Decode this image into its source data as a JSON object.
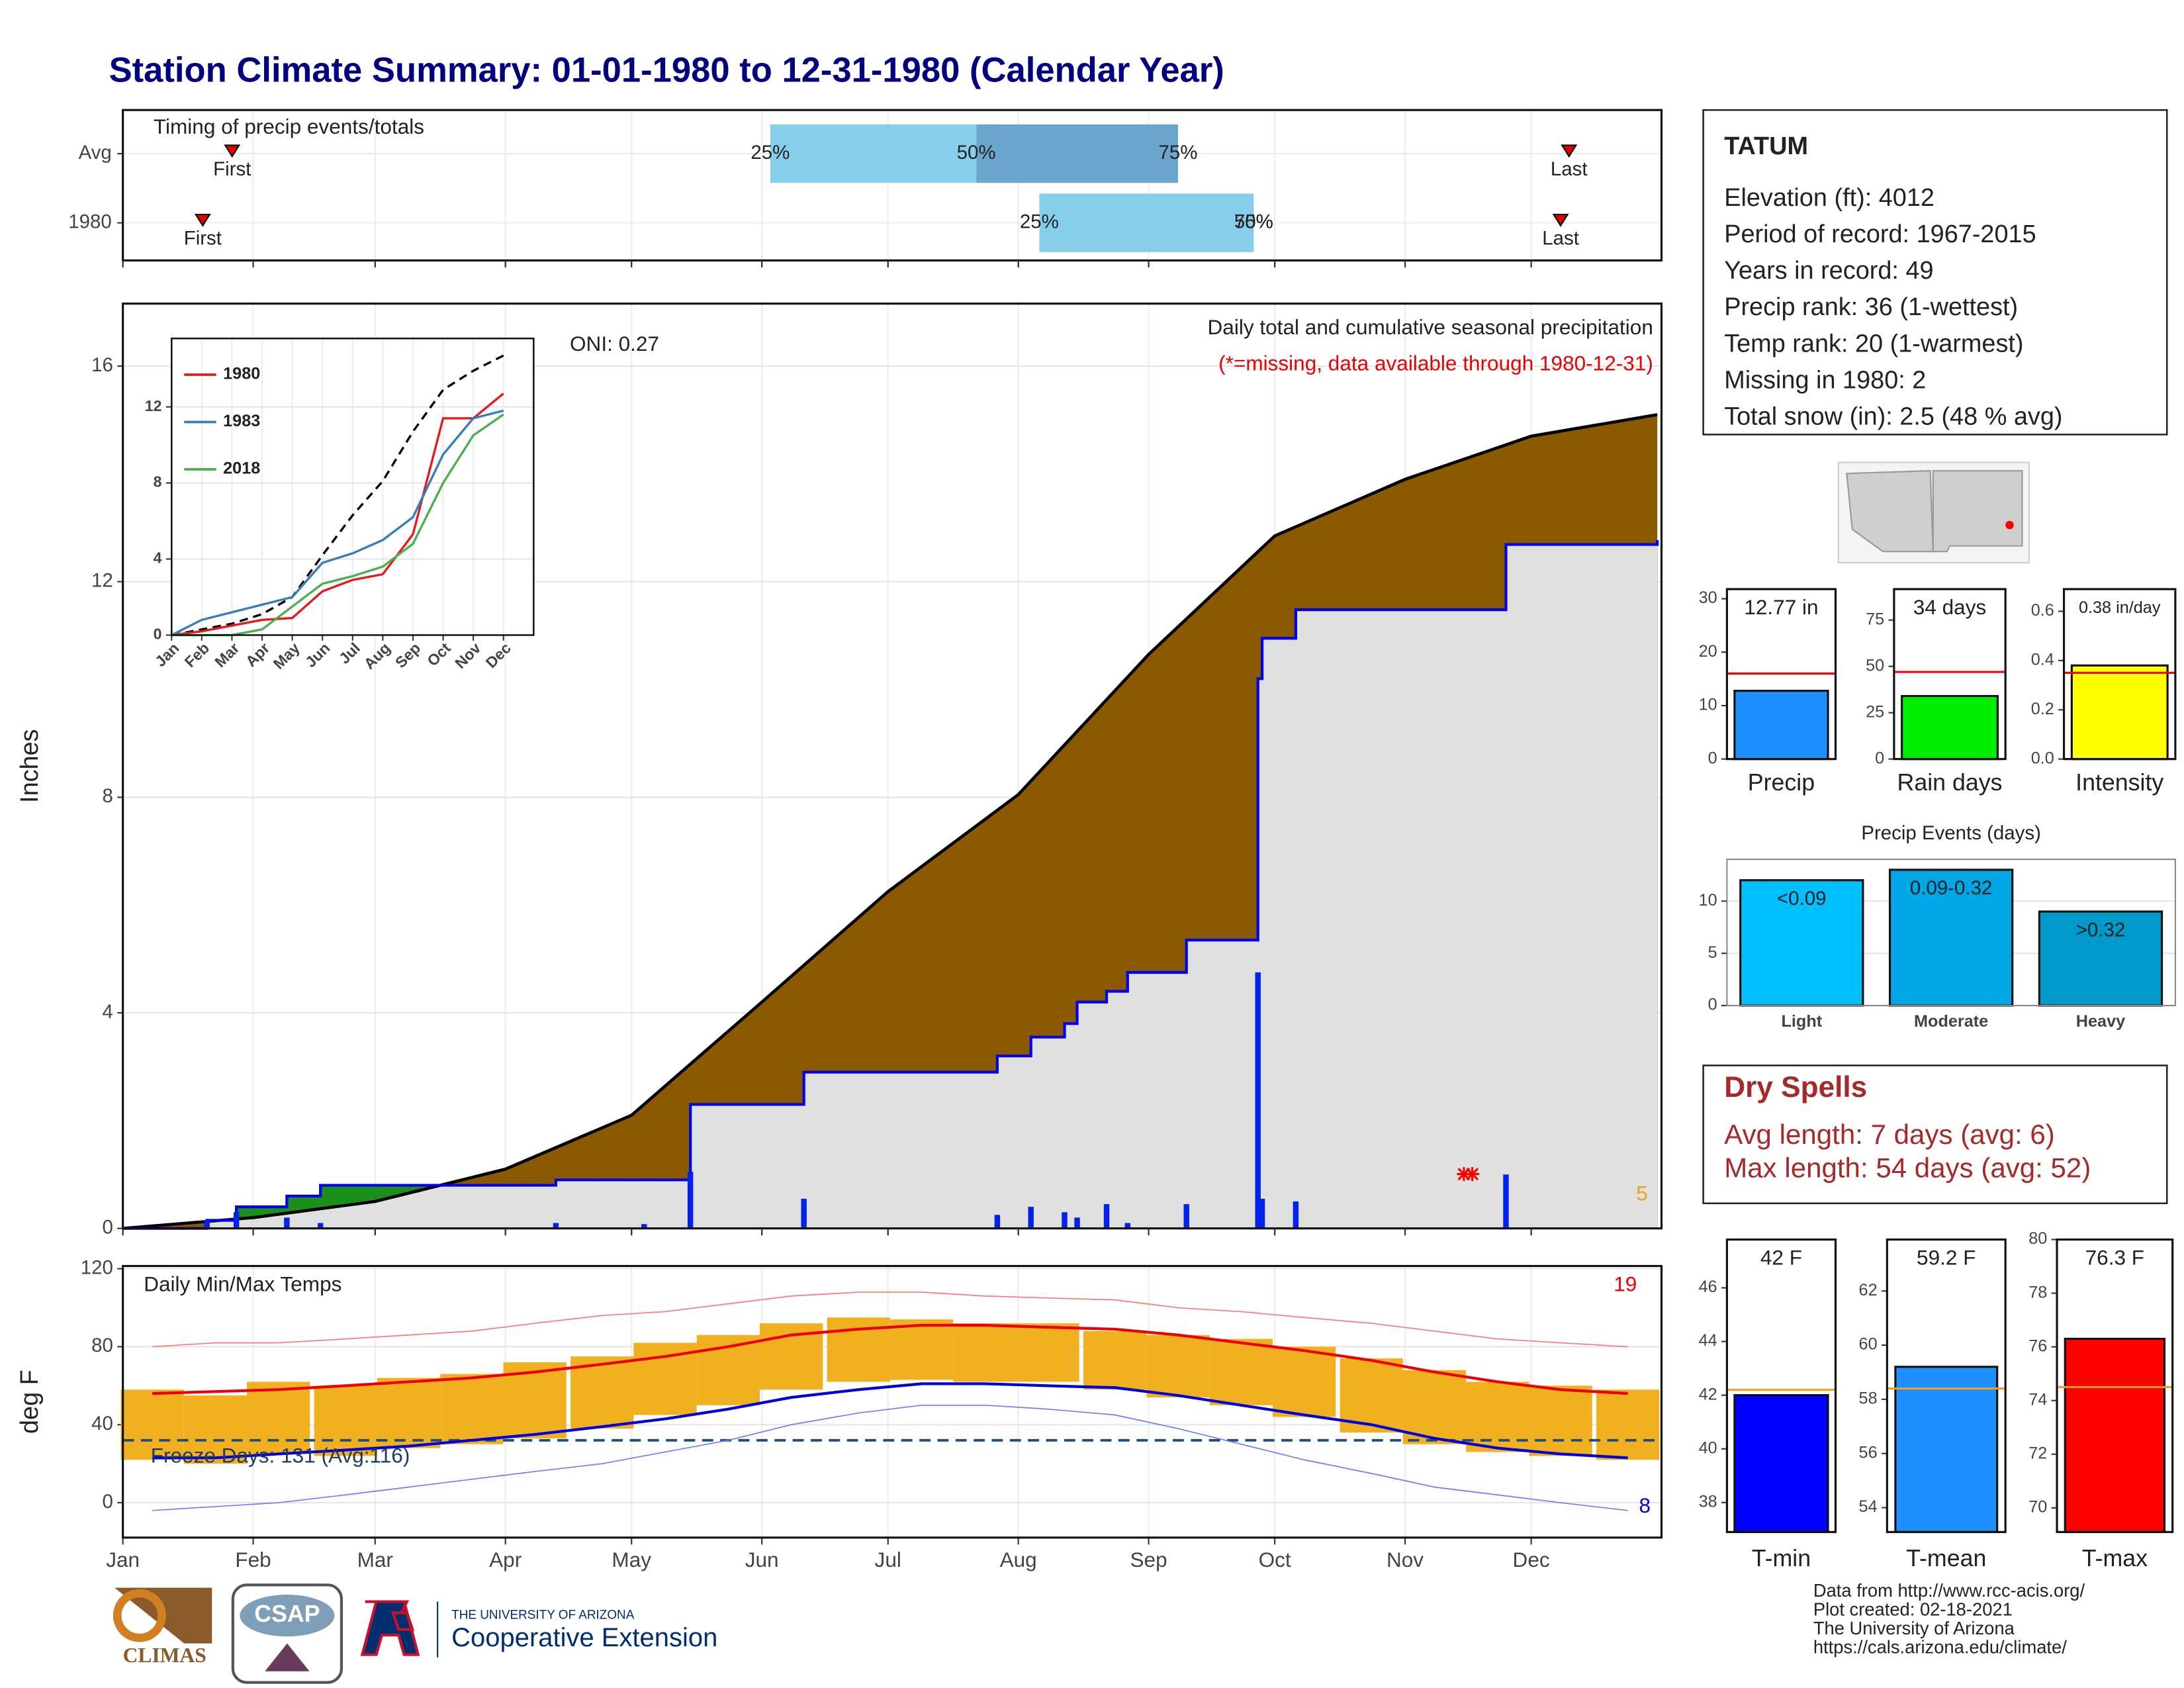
{
  "title": "Station Climate Summary: 01-01-1980 to 12-31-1980 (Calendar Year)",
  "station": {
    "name": "TATUM",
    "lines": [
      "Elevation (ft): 4012",
      "Period of record: 1967-2015",
      "Years in record: 49",
      "Precip rank: 36 (1-wettest)",
      "Temp rank: 20 (1-warmest)",
      "Missing in 1980: 2",
      "Total snow (in): 2.5 (48 % avg)"
    ]
  },
  "dry_spells": {
    "title": "Dry Spells",
    "lines": [
      "Avg length: 7 days (avg: 6)",
      "Max length: 54 days (avg: 52)"
    ]
  },
  "footer": [
    "Data from http://www.rcc-acis.org/",
    "Plot created: 02-18-2021",
    "The University of Arizona",
    "https://cals.arizona.edu/climate/"
  ],
  "logos": [
    "CLIMAS",
    "CSAP",
    "THE UNIVERSITY OF ARIZONA",
    "Cooperative Extension"
  ],
  "chart_data": [
    {
      "type": "timing",
      "title": "Timing of precip events/totals",
      "xlim": [
        1,
        367
      ],
      "categories": [
        "Avg",
        "1980"
      ],
      "first": [
        27,
        20
      ],
      "last": [
        345,
        343
      ],
      "first_label": "First",
      "last_label": "Last",
      "percentile_labels": [
        "25%",
        "50%",
        "75%"
      ],
      "percentiles": [
        [
          155,
          204,
          252
        ],
        [
          219,
          270,
          270
        ]
      ],
      "colors": [
        "#87ceeb",
        "#6ca6cd"
      ],
      "marker_color": "#e00000"
    },
    {
      "type": "area",
      "ylabel": "Inches",
      "title": "Daily total and cumulative seasonal precipitation",
      "subtitle": "(*=missing, data available through 1980-12-31)",
      "annotation": "ONI: 0.27",
      "count_label": "5",
      "xlim": [
        1,
        367
      ],
      "ylim": [
        0,
        17.16
      ],
      "yticks": [
        0,
        4,
        8,
        12,
        16
      ],
      "grid": true,
      "average": {
        "x": [
          1,
          32,
          61,
          92,
          122,
          153,
          183,
          214,
          245,
          275,
          306,
          336,
          366
        ],
        "values": [
          0,
          0.2,
          0.5,
          1.1,
          2.1,
          4.2,
          6.25,
          8.05,
          10.65,
          12.85,
          13.9,
          14.7,
          15.1
        ],
        "color": "#8b5a00"
      },
      "cumulative": {
        "x": [
          1,
          21,
          28,
          40,
          48,
          104,
          136,
          163,
          209,
          217,
          225,
          228,
          235,
          240,
          254,
          271,
          272,
          280,
          330,
          366
        ],
        "values": [
          0,
          0.15,
          0.4,
          0.6,
          0.8,
          0.9,
          2.3,
          2.9,
          3.2,
          3.55,
          3.8,
          4.2,
          4.4,
          4.75,
          5.35,
          10.2,
          10.95,
          11.48,
          12.69,
          12.77
        ],
        "color": "#0000ee",
        "above_color": "#1a8f1a",
        "below_color": "#e0e0e0"
      },
      "daily": {
        "x": [
          21,
          28,
          40,
          48,
          104,
          125,
          136,
          163,
          209,
          217,
          225,
          228,
          235,
          240,
          254,
          271,
          272,
          280,
          330
        ],
        "values": [
          0.15,
          0.3,
          0.2,
          0.1,
          0.1,
          0.08,
          1.05,
          0.55,
          0.25,
          0.4,
          0.3,
          0.2,
          0.45,
          0.1,
          0.45,
          4.75,
          0.55,
          0.5,
          1.0
        ],
        "color": "#0022ee"
      },
      "missing": {
        "x": [
          320,
          322
        ],
        "color": "#ff0000"
      }
    },
    {
      "type": "line",
      "categories": [
        "Jan",
        "Feb",
        "Mar",
        "Apr",
        "May",
        "Jun",
        "Jul",
        "Aug",
        "Sep",
        "Oct",
        "Nov",
        "Dec"
      ],
      "ylim": [
        0,
        15.6
      ],
      "yticks": [
        0,
        4,
        8,
        12
      ],
      "series": [
        {
          "color": "#000000",
          "dash": true,
          "values": [
            0,
            0.3,
            0.6,
            1.1,
            2.0,
            4.2,
            6.3,
            8.1,
            10.7,
            12.9,
            13.9,
            14.7
          ]
        },
        {
          "name": "1980",
          "color": "#e41a1c",
          "values": [
            0,
            0.2,
            0.5,
            0.8,
            0.9,
            2.3,
            2.9,
            3.2,
            5.3,
            11.4,
            11.4,
            12.7
          ]
        },
        {
          "name": "1983",
          "color": "#377eb8",
          "values": [
            0,
            0.8,
            1.2,
            1.6,
            2.0,
            3.8,
            4.3,
            5.0,
            6.2,
            9.5,
            11.4,
            11.8
          ]
        },
        {
          "name": "2018",
          "color": "#4daf4a",
          "values": [
            0,
            0,
            0,
            0.3,
            1.5,
            2.7,
            3.1,
            3.6,
            4.8,
            8.0,
            10.5,
            11.6
          ]
        }
      ]
    },
    {
      "type": "temperature",
      "title": "Daily Min/Max Temps",
      "ylabel": "deg F",
      "xlim": [
        1,
        367
      ],
      "ylim": [
        -17.9,
        121.4
      ],
      "yticks": [
        0,
        40,
        80,
        120
      ],
      "grid": true,
      "xticks": [
        {
          "value": 1,
          "label": "Jan"
        },
        {
          "value": 32,
          "label": "Feb"
        },
        {
          "value": 61,
          "label": "Mar"
        },
        {
          "value": 92,
          "label": "Apr"
        },
        {
          "value": 122,
          "label": "May"
        },
        {
          "value": 153,
          "label": "Jun"
        },
        {
          "value": 183,
          "label": "Jul"
        },
        {
          "value": 214,
          "label": "Aug"
        },
        {
          "value": 245,
          "label": "Sep"
        },
        {
          "value": 275,
          "label": "Oct"
        },
        {
          "value": 306,
          "label": "Nov"
        },
        {
          "value": 336,
          "label": "Dec"
        }
      ],
      "freeze": 32,
      "freeze_label": "Freeze Days: 131 (Avg:116)",
      "hot_count": "19",
      "cold_count": "8",
      "bar_color": "#f0b020",
      "x": [
        8,
        23,
        38,
        54,
        69,
        84,
        99,
        115,
        130,
        145,
        160,
        176,
        191,
        206,
        221,
        237,
        252,
        267,
        282,
        298,
        313,
        328,
        343,
        359
      ],
      "tmax": [
        58,
        55,
        62,
        60,
        64,
        66,
        72,
        75,
        82,
        86,
        92,
        95,
        94,
        92,
        92,
        88,
        86,
        84,
        80,
        74,
        68,
        62,
        60,
        58
      ],
      "tmin": [
        22,
        20,
        25,
        24,
        28,
        30,
        33,
        38,
        45,
        50,
        58,
        62,
        63,
        62,
        62,
        58,
        54,
        50,
        44,
        36,
        30,
        26,
        24,
        22
      ],
      "avg_max": [
        56,
        57,
        58,
        60,
        62,
        64,
        67,
        71,
        75,
        80,
        86,
        89,
        91,
        91,
        90,
        89,
        86,
        82,
        78,
        73,
        67,
        62,
        58,
        56
      ],
      "avg_min": [
        23,
        23,
        25,
        27,
        29,
        32,
        35,
        39,
        43,
        48,
        54,
        58,
        61,
        61,
        60,
        59,
        55,
        50,
        45,
        40,
        33,
        28,
        25,
        23
      ],
      "record_max": [
        80,
        82,
        82,
        84,
        86,
        88,
        92,
        96,
        98,
        102,
        106,
        108,
        108,
        106,
        105,
        104,
        100,
        98,
        95,
        92,
        88,
        84,
        82,
        80
      ],
      "record_min": [
        -4,
        -2,
        0,
        4,
        8,
        12,
        16,
        20,
        26,
        32,
        40,
        46,
        50,
        50,
        48,
        45,
        38,
        30,
        22,
        15,
        8,
        4,
        0,
        -4
      ],
      "line_colors": {
        "avg_max": "#ee0000",
        "avg_min": "#0000dd",
        "record_max": "#ff7777",
        "record_min": "#7777ff",
        "freeze": "#1f4e79"
      }
    },
    {
      "type": "bar",
      "categories": [
        "Precip"
      ],
      "values": [
        12.77
      ],
      "value_labels": [
        "12.77 in"
      ],
      "color": "#1e90ff",
      "avg": 16,
      "avg_color": "#ff0000",
      "ylim": [
        0,
        31.8
      ],
      "yticks": [
        0,
        10,
        20,
        30
      ]
    },
    {
      "type": "bar",
      "categories": [
        "Rain days"
      ],
      "values": [
        34
      ],
      "value_labels": [
        "34 days"
      ],
      "color": "#00ee00",
      "avg": 47,
      "avg_color": "#ff0000",
      "ylim": [
        0,
        91.7
      ],
      "yticks": [
        0,
        25,
        50,
        75
      ]
    },
    {
      "type": "bar",
      "categories": [
        "Intensity"
      ],
      "values": [
        0.38
      ],
      "value_labels": [
        "0.38 in/day"
      ],
      "color": "#ffff00",
      "avg": 0.35,
      "avg_color": "#ff0000",
      "ylim": [
        0,
        0.69
      ],
      "yticks": [
        {
          "value": 0,
          "label": "0.0"
        },
        0.2,
        0.4,
        0.6
      ]
    },
    {
      "type": "bar",
      "title": "Precip Events (days)",
      "categories": [
        "Light",
        "Moderate",
        "Heavy"
      ],
      "values": [
        12,
        13,
        9
      ],
      "bar_labels": [
        "<0.09",
        "0.09-0.32",
        ">0.32"
      ],
      "colors": [
        "#00bfff",
        "#00a6e6",
        "#0099cc"
      ],
      "ylim": [
        0,
        14
      ],
      "yticks": [
        0,
        5,
        10
      ],
      "grid": true
    },
    {
      "type": "bar",
      "categories": [
        "T-min"
      ],
      "values": [
        42
      ],
      "value_labels": [
        "42 F"
      ],
      "color": "#0000ff",
      "avg": 42.2,
      "avg_color": "#f0a020",
      "ylim": [
        36.9,
        47.8
      ],
      "yticks": [
        38,
        40,
        42,
        44,
        46
      ]
    },
    {
      "type": "bar",
      "categories": [
        "T-mean"
      ],
      "values": [
        59.2
      ],
      "value_labels": [
        "59.2 F"
      ],
      "color": "#1e90ff",
      "avg": 58.4,
      "avg_color": "#f0a020",
      "ylim": [
        53.1,
        63.9
      ],
      "yticks": [
        54,
        56,
        58,
        60,
        62
      ]
    },
    {
      "type": "bar",
      "categories": [
        "T-max"
      ],
      "values": [
        76.3
      ],
      "value_labels": [
        "76.3 F"
      ],
      "color": "#ff0000",
      "avg": 74.5,
      "avg_color": "#f0a020",
      "ylim": [
        69.1,
        80
      ],
      "yticks": [
        70,
        72,
        74,
        76,
        78,
        80
      ]
    }
  ]
}
